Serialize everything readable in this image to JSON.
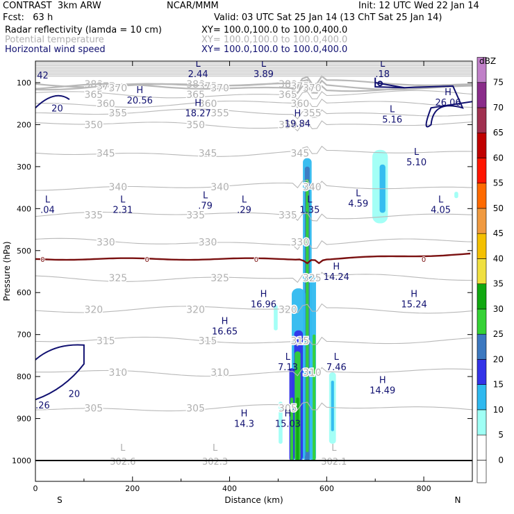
{
  "header": {
    "model": "CONTRAST  3km ARW",
    "center": "NCAR/MMM",
    "init": "Init: 12 UTC Wed 22 Jan 14",
    "fcst": "Fcst:   63 h",
    "valid": "Valid: 03 UTC Sat 25 Jan 14 (13 ChT Sat 25 Jan 14)",
    "fields": [
      {
        "name": "Radar reflectivity (lamda = 10 cm)",
        "xy": "XY= 100.0,100.0 to 100.0,400.0",
        "color": "#000000"
      },
      {
        "name": "Potential temperature",
        "xy": "XY= 100.0,100.0 to 100.0,400.0",
        "color": "#b0b0b0"
      },
      {
        "name": "Horizontal wind speed",
        "xy": "XY= 100.0,100.0 to 100.0,400.0",
        "color": "#101070"
      }
    ]
  },
  "chart_data": {
    "type": "cross-section",
    "xlabel": "Distance (km)",
    "ylabel": "Pressure (hPa)",
    "xlim": [
      0,
      900
    ],
    "ylim": [
      1050,
      60
    ],
    "x_ticks": [
      0,
      200,
      400,
      600,
      800
    ],
    "y_ticks": [
      100,
      200,
      300,
      400,
      500,
      600,
      700,
      800,
      900,
      1000
    ],
    "endpoints": {
      "left": "S",
      "right": "N"
    },
    "colorbar": {
      "unit": "dBZ",
      "levels": [
        0,
        5,
        10,
        15,
        20,
        25,
        30,
        35,
        40,
        45,
        50,
        55,
        60,
        65,
        70,
        75
      ],
      "colors": [
        "#ffffff",
        "#9ffff5",
        "#2fb9ef",
        "#3333e8",
        "#3c78c0",
        "#35d235",
        "#10a810",
        "#f0e040",
        "#f4c000",
        "#f09a40",
        "#ff6a00",
        "#ff1500",
        "#c00000",
        "#a03050",
        "#8a2c8a",
        "#c080c8"
      ]
    },
    "theta_contours": [
      {
        "value": "380",
        "pressure": 103
      },
      {
        "value": "375",
        "pressure": 108
      },
      {
        "value": "370",
        "pressure": 112
      },
      {
        "value": "365",
        "pressure": 128
      },
      {
        "value": "360",
        "pressure": 150
      },
      {
        "value": "355",
        "pressure": 172
      },
      {
        "value": "350",
        "pressure": 200
      },
      {
        "value": "345",
        "pressure": 268
      },
      {
        "value": "340",
        "pressure": 348
      },
      {
        "value": "335",
        "pressure": 415
      },
      {
        "value": "330",
        "pressure": 480
      },
      {
        "value": "325",
        "pressure": 565
      },
      {
        "value": "320",
        "pressure": 640
      },
      {
        "value": "315",
        "pressure": 715
      },
      {
        "value": "310",
        "pressure": 790
      },
      {
        "value": "305",
        "pressure": 875
      }
    ],
    "theta_lows": [
      {
        "label": "L",
        "value": "302.6",
        "x": 180,
        "p": 1000
      },
      {
        "label": "L",
        "value": "302.3",
        "x": 370,
        "p": 1000
      },
      {
        "label": "L",
        "value": "302.1",
        "x": 615,
        "p": 1000
      }
    ],
    "zero_line_pressure": 520,
    "wind_labels": [
      {
        "label": "",
        "value": "42",
        "x": 15,
        "p": 85
      },
      {
        "label": "L",
        "value": "2.44",
        "x": 335,
        "p": 82
      },
      {
        "label": "L",
        "value": "3.89",
        "x": 470,
        "p": 82
      },
      {
        "label": "L",
        "value": ".18",
        "x": 715,
        "p": 82
      },
      {
        "label": "H",
        "value": "20.56",
        "x": 215,
        "p": 145
      },
      {
        "label": "H",
        "value": "18.27",
        "x": 335,
        "p": 175
      },
      {
        "label": "H",
        "value": "19.84",
        "x": 540,
        "p": 200
      },
      {
        "label": "L",
        "value": "5.16",
        "x": 735,
        "p": 190
      },
      {
        "label": "H",
        "value": "26.06",
        "x": 850,
        "p": 150
      },
      {
        "label": "L",
        "value": "5.10",
        "x": 785,
        "p": 292
      },
      {
        "label": "L",
        "value": ".04",
        "x": 25,
        "p": 405
      },
      {
        "label": "L",
        "value": "2.31",
        "x": 180,
        "p": 405
      },
      {
        "label": "L",
        "value": ".79",
        "x": 350,
        "p": 395
      },
      {
        "label": "L",
        "value": ".29",
        "x": 430,
        "p": 405
      },
      {
        "label": "L",
        "value": "1.35",
        "x": 565,
        "p": 405
      },
      {
        "label": "L",
        "value": "4.59",
        "x": 665,
        "p": 390
      },
      {
        "label": "L",
        "value": "4.05",
        "x": 835,
        "p": 405
      },
      {
        "label": "H",
        "value": "14.24",
        "x": 620,
        "p": 565
      },
      {
        "label": "H",
        "value": "16.96",
        "x": 470,
        "p": 630
      },
      {
        "label": "H",
        "value": "15.24",
        "x": 780,
        "p": 630
      },
      {
        "label": "H",
        "value": "16.65",
        "x": 390,
        "p": 695
      },
      {
        "label": "L",
        "value": "7.13",
        "x": 520,
        "p": 780
      },
      {
        "label": "L",
        "value": "7.46",
        "x": 620,
        "p": 780
      },
      {
        "label": "H",
        "value": "14.49",
        "x": 715,
        "p": 835
      },
      {
        "label": "H",
        "value": "14.3",
        "x": 430,
        "p": 915
      },
      {
        "label": "H",
        "value": "15.03",
        "x": 520,
        "p": 915
      }
    ],
    "wind_contour_labels": [
      {
        "value": "20",
        "x": 45,
        "p": 160
      },
      {
        "value": "20",
        "x": 80,
        "p": 840
      },
      {
        "value": ".26",
        "x": 15,
        "p": 868
      }
    ]
  }
}
